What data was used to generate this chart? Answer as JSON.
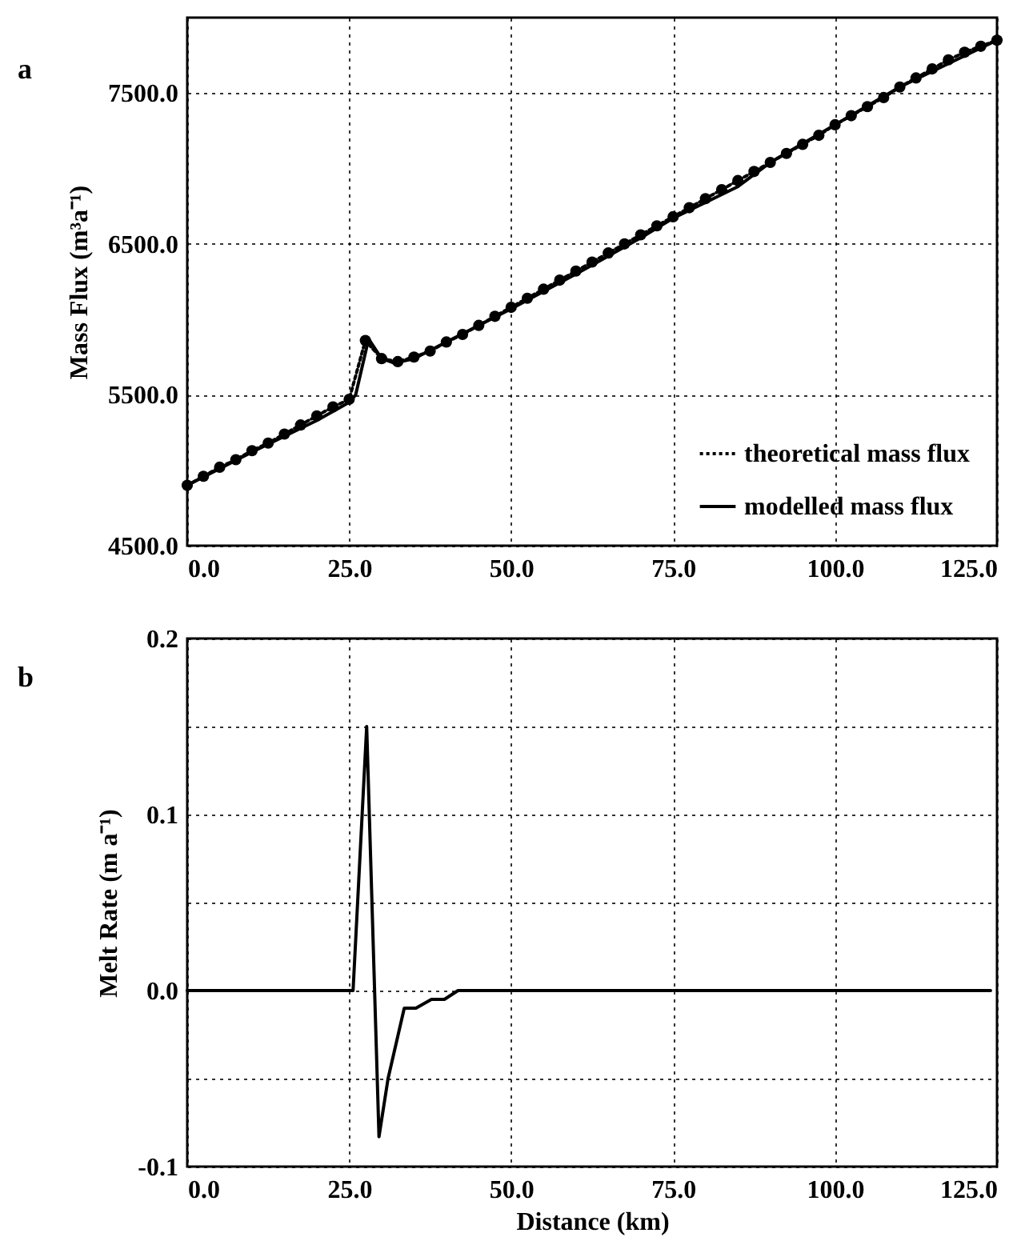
{
  "chart_data": [
    {
      "type": "line",
      "title": "a",
      "ylabel": "Mass Flux (m³a⁻¹)",
      "xlim": [
        0,
        125
      ],
      "ylim": [
        4500,
        8000
      ],
      "xticks": [
        {
          "value": 0,
          "label": "0.0"
        },
        {
          "value": 25,
          "label": "25.0"
        },
        {
          "value": 50,
          "label": "50.0"
        },
        {
          "value": 75,
          "label": "75.0"
        },
        {
          "value": 100,
          "label": "100.0"
        },
        {
          "value": 125,
          "label": "125.0"
        }
      ],
      "yticks": [
        {
          "value": 4500,
          "label": "4500.0"
        },
        {
          "value": 5500,
          "label": "5500.0"
        },
        {
          "value": 6500,
          "label": "6500.0"
        },
        {
          "value": 7500,
          "label": "7500.0"
        }
      ],
      "grid": true,
      "legend": "bottom right",
      "series": [
        {
          "name": "theoretical mass flux",
          "color": "#000000",
          "marker": "circle",
          "line_style": "dotted",
          "x": [
            0,
            2.5,
            5,
            7.5,
            10,
            12.5,
            15,
            17.5,
            20,
            22.5,
            25,
            27.5,
            30,
            32.5,
            35,
            37.5,
            40,
            42.5,
            45,
            47.5,
            50,
            52.5,
            55,
            57.5,
            60,
            62.5,
            65,
            67.5,
            70,
            72.5,
            75,
            77.5,
            80,
            82.5,
            85,
            87.5,
            90,
            92.5,
            95,
            97.5,
            100,
            102.5,
            105,
            107.5,
            110,
            112.5,
            115,
            117.5,
            120,
            122.5,
            125
          ],
          "values": [
            4900,
            4960,
            5020,
            5070,
            5130,
            5180,
            5240,
            5300,
            5360,
            5420,
            5470,
            5860,
            5740,
            5720,
            5750,
            5790,
            5850,
            5900,
            5960,
            6020,
            6080,
            6140,
            6200,
            6260,
            6320,
            6380,
            6440,
            6500,
            6560,
            6620,
            6680,
            6740,
            6800,
            6860,
            6920,
            6980,
            7040,
            7100,
            7160,
            7220,
            7290,
            7350,
            7410,
            7470,
            7540,
            7600,
            7660,
            7720,
            7770,
            7810,
            7850
          ]
        },
        {
          "name": "modelled mass flux",
          "color": "#000000",
          "marker": "none",
          "line_style": "solid",
          "x": [
            0,
            10,
            20,
            25,
            26,
            28,
            30,
            32,
            35,
            40,
            50,
            60,
            70,
            75,
            85,
            90,
            100,
            110,
            125
          ],
          "values": [
            4900,
            5120,
            5330,
            5450,
            5500,
            5870,
            5740,
            5710,
            5740,
            5850,
            6070,
            6300,
            6540,
            6670,
            6880,
            7040,
            7290,
            7540,
            7850
          ]
        }
      ]
    },
    {
      "type": "line",
      "title": "b",
      "xlabel": "Distance (km)",
      "ylabel": "Melt Rate (m a⁻¹)",
      "xlim": [
        0,
        125
      ],
      "ylim": [
        -0.1,
        0.2
      ],
      "xticks": [
        {
          "value": 0,
          "label": "0.0"
        },
        {
          "value": 25,
          "label": "25.0"
        },
        {
          "value": 50,
          "label": "50.0"
        },
        {
          "value": 75,
          "label": "75.0"
        },
        {
          "value": 100,
          "label": "100.0"
        },
        {
          "value": 125,
          "label": "125.0"
        }
      ],
      "yticks": [
        -0.1,
        {
          "value": -0.05,
          "label": null
        },
        {
          "value": 0,
          "label": "0.0"
        },
        {
          "value": 0.05,
          "label": null
        },
        0.1,
        {
          "value": 0.15,
          "label": null
        },
        0.2
      ],
      "grid": true,
      "series": [
        {
          "color": "#000000",
          "line_style": "solid",
          "x": [
            0,
            25.6,
            27.7,
            29.6,
            31,
            33.5,
            35.3,
            37.7,
            39.7,
            41.8,
            124
          ],
          "values": [
            0,
            0,
            0.15,
            -0.083,
            -0.05,
            -0.01,
            -0.01,
            -0.005,
            -0.005,
            0,
            0
          ]
        }
      ]
    }
  ]
}
